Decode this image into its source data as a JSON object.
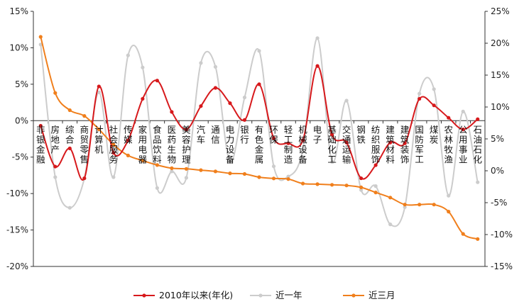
{
  "chart_data": {
    "type": "line",
    "categories": [
      "非银金融",
      "房地产",
      "综合",
      "商贸零售",
      "计算机",
      "社会服务",
      "传媒",
      "家用电器",
      "食品饮料",
      "医药生物",
      "美容护理",
      "汽车",
      "通信",
      "电力设备",
      "银行",
      "有色金属",
      "环保",
      "轻工制造",
      "机械设备",
      "电子",
      "基础化工",
      "交通运输",
      "钢铁",
      "纺织服饰",
      "建筑材料",
      "建筑装饰",
      "国防军工",
      "煤炭",
      "农林牧渔",
      "公用事业",
      "石油石化"
    ],
    "left_axis": {
      "min": -20,
      "max": 15,
      "step": 5,
      "ticks": [
        "15%",
        "10%",
        "5%",
        "0%",
        "-5%",
        "-10%",
        "-15%",
        "-20%"
      ]
    },
    "right_axis": {
      "min": -15,
      "max": 25,
      "step": 5,
      "ticks": [
        "25%",
        "20%",
        "15%",
        "10%",
        "5%",
        "0%",
        "-5%",
        "-10%",
        "-15%"
      ]
    },
    "series": [
      {
        "name": "2010年以来(年化)",
        "color": "#d7191c",
        "axis": "left",
        "markers": true,
        "values": [
          -0.7,
          -6.3,
          -3.8,
          -7.9,
          4.7,
          -4.4,
          -2.7,
          3.0,
          5.5,
          1.2,
          -1.2,
          2.0,
          4.5,
          2.4,
          0.1,
          5.0,
          -2.4,
          -3.1,
          -2.7,
          7.5,
          -1.9,
          -3.0,
          -7.9,
          -6.1,
          -3.0,
          -3.1,
          3.0,
          2.1,
          0.4,
          -1.2,
          0.2
        ]
      },
      {
        "name": "近一年",
        "color": "#cccccc",
        "axis": "right",
        "markers": true,
        "values": [
          19.8,
          -1.0,
          -5.8,
          -1.2,
          12.3,
          -1.0,
          18.1,
          16.2,
          -2.7,
          -0.1,
          -1.1,
          16.9,
          16.3,
          1.4,
          11.5,
          18.8,
          0.7,
          -0.9,
          3.3,
          20.8,
          1.4,
          11.0,
          -3.0,
          -2.4,
          -8.4,
          -5.7,
          12.1,
          12.8,
          -3.9,
          9.3,
          -1.8
        ]
      },
      {
        "name": "近三月",
        "color": "#f07f1c",
        "axis": "right",
        "markers": true,
        "values": [
          21.0,
          12.2,
          9.5,
          8.6,
          6.5,
          4.1,
          2.4,
          1.6,
          0.9,
          0.4,
          0.3,
          0.1,
          -0.1,
          -0.4,
          -0.5,
          -1.0,
          -1.2,
          -1.3,
          -2.0,
          -2.1,
          -2.2,
          -2.3,
          -2.6,
          -3.4,
          -4.2,
          -5.3,
          -5.3,
          -5.3,
          -6.4,
          -9.9,
          -10.7
        ]
      }
    ]
  }
}
